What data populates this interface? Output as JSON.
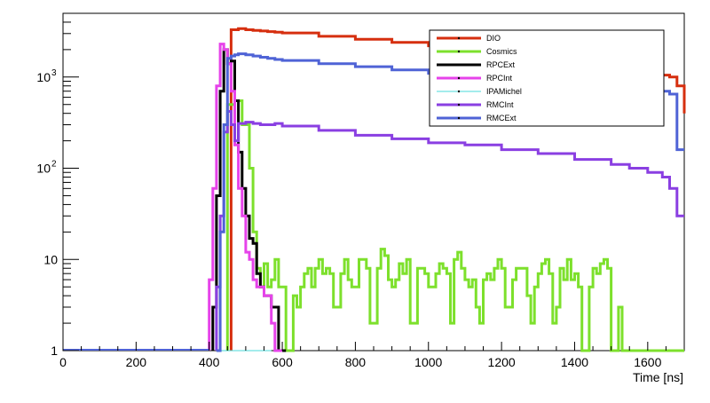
{
  "chart_data": {
    "type": "line",
    "style": "step-histogram",
    "title": "",
    "xlabel": "Time [ns]",
    "ylabel": "",
    "xlim": [
      0,
      1700
    ],
    "ylim": [
      1,
      5000
    ],
    "yscale": "log",
    "grid": false,
    "legend_position": "top-right",
    "x_ticks": [
      {
        "value": 0,
        "label": "0"
      },
      {
        "value": 200,
        "label": "200"
      },
      {
        "value": 400,
        "label": "400"
      },
      {
        "value": 600,
        "label": "600"
      },
      {
        "value": 800,
        "label": "800"
      },
      {
        "value": 1000,
        "label": "1000"
      },
      {
        "value": 1200,
        "label": "1200"
      },
      {
        "value": 1400,
        "label": "1400"
      },
      {
        "value": 1600,
        "label": "1600"
      }
    ],
    "y_ticks": [
      {
        "value": 1,
        "label": "1"
      },
      {
        "value": 10,
        "label": "10"
      },
      {
        "value": 100,
        "label": "10",
        "exp": "2"
      },
      {
        "value": 1000,
        "label": "10",
        "exp": "3"
      }
    ],
    "series": [
      {
        "name": "DIO",
        "color": "#d62f0f",
        "x": [
          460,
          480,
          500,
          520,
          540,
          560,
          580,
          600,
          700,
          800,
          900,
          1000,
          1100,
          1200,
          1300,
          1400,
          1500,
          1600,
          1640,
          1660,
          1680,
          1700
        ],
        "y": [
          3300,
          3400,
          3300,
          3250,
          3200,
          3150,
          3100,
          3050,
          2800,
          2600,
          2400,
          2200,
          2000,
          1800,
          1600,
          1450,
          1300,
          1150,
          1050,
          1000,
          800,
          400
        ]
      },
      {
        "name": "Cosmics",
        "color": "#7de02c",
        "x": [
          450,
          470,
          490,
          510,
          520,
          530,
          540,
          550,
          560,
          570,
          580,
          590,
          600,
          610,
          620,
          630,
          640,
          650,
          660,
          670,
          680,
          690,
          700,
          710,
          720,
          730,
          740,
          750,
          760,
          770,
          780,
          790,
          800,
          810,
          820,
          830,
          840,
          850,
          860,
          870,
          880,
          890,
          900,
          910,
          920,
          930,
          940,
          950,
          960,
          970,
          980,
          990,
          1000,
          1010,
          1020,
          1030,
          1040,
          1050,
          1060,
          1070,
          1080,
          1090,
          1100,
          1110,
          1120,
          1130,
          1140,
          1150,
          1160,
          1170,
          1180,
          1190,
          1200,
          1210,
          1220,
          1230,
          1240,
          1250,
          1260,
          1270,
          1280,
          1290,
          1300,
          1310,
          1320,
          1330,
          1340,
          1350,
          1360,
          1370,
          1380,
          1390,
          1400,
          1410,
          1420,
          1430,
          1440,
          1450,
          1460,
          1470,
          1480,
          1490,
          1500,
          1510,
          1520,
          1530,
          1540,
          1550,
          1560,
          1570,
          1580,
          1590,
          1600,
          1610,
          1620,
          1630,
          1640,
          1650,
          1660,
          1670,
          1680,
          1690
        ],
        "y": [
          500,
          550,
          300,
          100,
          20,
          8,
          5,
          9,
          5,
          6,
          10,
          5,
          5,
          1,
          1,
          4,
          3,
          5,
          7,
          8,
          5,
          8,
          10,
          7,
          8,
          7,
          3,
          3,
          7,
          10,
          6,
          5,
          5,
          10,
          10,
          8,
          2,
          2,
          8,
          13,
          11,
          6,
          5,
          6,
          9,
          7,
          10,
          2,
          2,
          8,
          8,
          7,
          5,
          5,
          7,
          9,
          8,
          7,
          2,
          10,
          12,
          8,
          6,
          5,
          6,
          3,
          2,
          6,
          7,
          6,
          8,
          10,
          8,
          3,
          3,
          6,
          8,
          8,
          8,
          4,
          2,
          5,
          7,
          9,
          10,
          7,
          2,
          3,
          8,
          6,
          10,
          6,
          7,
          5,
          1,
          1,
          5,
          8,
          7,
          9,
          10,
          8,
          1,
          1,
          3,
          1,
          1,
          1,
          1,
          1,
          1,
          1,
          1,
          1,
          1,
          1,
          1,
          1,
          1,
          1,
          1,
          1
        ],
        "note": ""
      },
      {
        "name": "RPCExt",
        "color": "#000000",
        "x": [
          410,
          420,
          430,
          440,
          450,
          460,
          470,
          480,
          490,
          500,
          510,
          520,
          530,
          540,
          550,
          560,
          570,
          580,
          590,
          600
        ],
        "y": [
          3,
          50,
          700,
          2000,
          1400,
          1500,
          550,
          150,
          60,
          30,
          17,
          15,
          7,
          5,
          4,
          4,
          3,
          3,
          1,
          1
        ]
      },
      {
        "name": "RPCInt",
        "color": "#e643ea",
        "x": [
          400,
          410,
          420,
          430,
          440,
          450,
          460,
          470,
          480,
          490,
          500,
          510,
          520,
          530,
          540,
          550,
          560,
          570,
          580,
          590
        ],
        "y": [
          6,
          60,
          800,
          2300,
          2000,
          1400,
          700,
          180,
          60,
          30,
          12,
          10,
          6,
          5,
          5,
          4,
          4,
          2,
          1,
          1
        ]
      },
      {
        "name": "IPAMichel",
        "color": "#48d8d8",
        "x": [
          420,
          440,
          460,
          480,
          500,
          520,
          540,
          560
        ],
        "y": [
          1,
          1,
          1,
          1,
          1,
          1,
          1,
          1
        ]
      },
      {
        "name": "RMCInt",
        "color": "#8a3fe2",
        "x": [
          420,
          430,
          440,
          450,
          460,
          470,
          480,
          500,
          520,
          540,
          560,
          580,
          600,
          700,
          800,
          900,
          1000,
          1100,
          1200,
          1300,
          1400,
          1500,
          1550,
          1600,
          1640,
          1660,
          1680,
          1700
        ],
        "y": [
          5,
          30,
          250,
          420,
          300,
          200,
          310,
          320,
          310,
          300,
          300,
          310,
          290,
          260,
          230,
          210,
          190,
          180,
          160,
          145,
          125,
          110,
          100,
          90,
          80,
          60,
          30,
          30
        ]
      },
      {
        "name": "RMCExt",
        "color": "#4f63d6",
        "x": [
          420,
          430,
          440,
          450,
          460,
          470,
          480,
          500,
          520,
          540,
          560,
          580,
          600,
          700,
          800,
          900,
          1000,
          1100,
          1200,
          1300,
          1400,
          1500,
          1600,
          1640,
          1660,
          1680,
          1700
        ],
        "y": [
          1,
          20,
          300,
          1600,
          1700,
          1750,
          1800,
          1750,
          1700,
          1650,
          1600,
          1560,
          1520,
          1400,
          1300,
          1200,
          1100,
          1000,
          950,
          900,
          850,
          800,
          750,
          700,
          650,
          160,
          160
        ]
      }
    ]
  }
}
